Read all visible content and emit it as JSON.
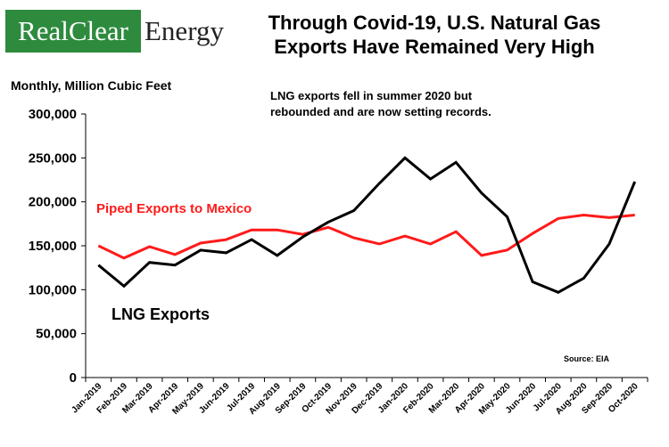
{
  "brand": {
    "logo_left": "RealClear",
    "logo_right": "Energy",
    "logo_green": "#2e8b3e"
  },
  "chart_data": {
    "type": "line",
    "title_lines": [
      "Through Covid-19, U.S. Natural Gas",
      "Exports Have Remained Very High"
    ],
    "subtitle": "Monthly, Million Cubic Feet",
    "annotation_lines": [
      "LNG exports fell in summer 2020 but",
      "rebounded and are now setting records."
    ],
    "source": "Source: EIA",
    "ylim": [
      0,
      300000
    ],
    "yticks": [
      0,
      50000,
      100000,
      150000,
      200000,
      250000,
      300000
    ],
    "ytick_labels": [
      "0",
      "50,000",
      "100,000",
      "150,000",
      "200,000",
      "250,000",
      "300,000"
    ],
    "grid": false,
    "categories": [
      "Jan-2019",
      "Feb-2019",
      "Mar-2019",
      "Apr-2019",
      "May-2019",
      "Jun-2019",
      "Jul-2019",
      "Aug-2019",
      "Sep-2019",
      "Oct-2019",
      "Nov-2019",
      "Dec-2019",
      "Jan-2020",
      "Feb-2020",
      "Mar-2020",
      "Apr-2020",
      "May-2020",
      "Jun-2020",
      "Jul-2020",
      "Aug-2020",
      "Sep-2020",
      "Oct-2020"
    ],
    "series": [
      {
        "name": "Piped Exports to Mexico",
        "color": "#ff1a1a",
        "values": [
          150000,
          136000,
          149000,
          140000,
          153000,
          157000,
          168000,
          168000,
          163000,
          171000,
          159000,
          152000,
          161000,
          152000,
          166000,
          139000,
          145000,
          164000,
          181000,
          185000,
          182000,
          185000
        ]
      },
      {
        "name": "LNG Exports",
        "color": "#000000",
        "values": [
          128000,
          104000,
          131000,
          128000,
          145000,
          142000,
          157000,
          139000,
          160000,
          177000,
          190000,
          221000,
          250000,
          226000,
          245000,
          210000,
          183000,
          109000,
          97000,
          113000,
          152000,
          223000
        ]
      }
    ]
  }
}
